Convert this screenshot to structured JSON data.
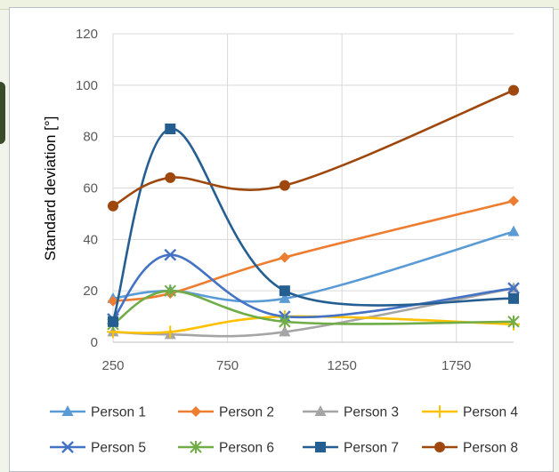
{
  "chart_data": {
    "type": "line",
    "title": "",
    "xlabel": "",
    "ylabel": "Standard deviation [°]",
    "xlim": [
      250,
      2000
    ],
    "ylim": [
      0,
      120
    ],
    "x_ticks": [
      "250",
      "750",
      "1250",
      "1750"
    ],
    "y_ticks": [
      "0",
      "20",
      "40",
      "60",
      "80",
      "100",
      "120"
    ],
    "grid": true,
    "legend_position": "bottom",
    "x": [
      250,
      500,
      1000,
      2000
    ],
    "series": [
      {
        "name": "Person 1",
        "values": [
          17,
          20,
          17,
          43
        ],
        "color": "#5b9bd5",
        "marker": "triangle"
      },
      {
        "name": "Person 2",
        "values": [
          16,
          19,
          33,
          55
        ],
        "color": "#ed7d31",
        "marker": "diamond"
      },
      {
        "name": "Person 3",
        "values": [
          4,
          3,
          4,
          21
        ],
        "color": "#a5a5a5",
        "marker": "triangle"
      },
      {
        "name": "Person 4",
        "values": [
          4,
          4,
          10,
          7
        ],
        "color": "#ffc000",
        "marker": "plus"
      },
      {
        "name": "Person 5",
        "values": [
          9,
          34,
          10,
          21
        ],
        "color": "#4472c4",
        "marker": "x"
      },
      {
        "name": "Person 6",
        "values": [
          7,
          20,
          8,
          8
        ],
        "color": "#70ad47",
        "marker": "star"
      },
      {
        "name": "Person 7",
        "values": [
          8,
          83,
          20,
          17
        ],
        "color": "#255e91",
        "marker": "square"
      },
      {
        "name": "Person 8",
        "values": [
          53,
          64,
          61,
          98
        ],
        "color": "#9e480e",
        "marker": "circle"
      }
    ]
  }
}
